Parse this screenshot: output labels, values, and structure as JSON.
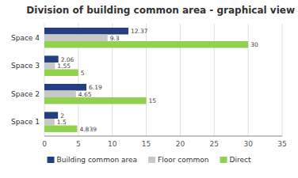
{
  "chart_data": {
    "type": "bar",
    "orientation": "horizontal",
    "title": "Division of building common area - graphical view",
    "categories": [
      "Space 1",
      "Space 2",
      "Space 3",
      "Space 4"
    ],
    "series": [
      {
        "name": "Building common area",
        "color": "#243F7F",
        "values": [
          2,
          6.19,
          2.06,
          12.37
        ]
      },
      {
        "name": "Floor common",
        "color": "#C8C8C8",
        "values": [
          1.5,
          4.65,
          1.55,
          9.3
        ]
      },
      {
        "name": "Direct",
        "color": "#92D050",
        "values": [
          4.839,
          15,
          5,
          30
        ]
      }
    ],
    "xlim": [
      0,
      35
    ],
    "xticks": [
      0,
      5,
      10,
      15,
      20,
      25,
      30,
      35
    ],
    "grid": true,
    "data_labels": true,
    "legend": "bottom"
  }
}
